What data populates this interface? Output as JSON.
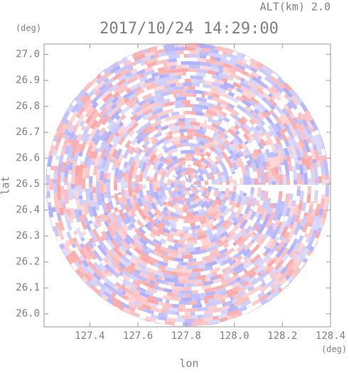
{
  "chart_data": {
    "type": "radar-ppi",
    "title": "2017/10/24 14:29:00",
    "subtitle": "ALT(km)  2.0",
    "x_label": "lon",
    "y_label": "lat",
    "x_unit": "(deg)",
    "y_unit": "(deg)",
    "xlim": [
      127.21,
      128.4
    ],
    "ylim": [
      25.95,
      27.04
    ],
    "xticks": [
      127.4,
      127.6,
      127.8,
      {
        "value": 128.0,
        "label": "128.0"
      },
      128.2,
      128.4
    ],
    "yticks": [
      {
        "value": 26.0,
        "label": "26.0"
      },
      26.1,
      26.2,
      26.3,
      26.4,
      26.5,
      26.6,
      26.7,
      26.8,
      26.9,
      {
        "value": 27.0,
        "label": "27.0"
      }
    ]
  }
}
